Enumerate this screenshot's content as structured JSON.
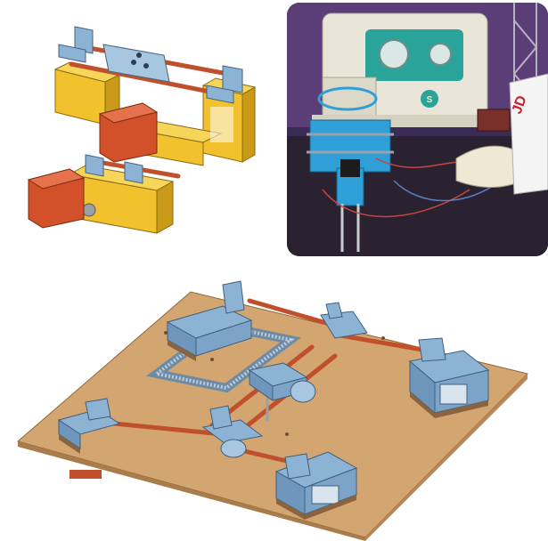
{
  "figure": {
    "panels": [
      {
        "id": "cad-xy-mechanism",
        "kind": "cad-render"
      },
      {
        "id": "embroidery-sewing-machine-photo",
        "kind": "photo"
      },
      {
        "id": "cad-baseplate-assembly",
        "kind": "cad-render"
      }
    ]
  },
  "photo": {
    "machine_badge": "S",
    "sign_lettering": "JD"
  },
  "colors": {
    "part_blue": "#8db3d4",
    "part_blue_dark": "#5d87ad",
    "part_yellow": "#f2c12e",
    "part_yellow_dark": "#c99a17",
    "rod_red": "#c0502b",
    "motor_orange": "#d2502a",
    "board_tan": "#d3a571",
    "board_edge": "#a97c4c",
    "photo_machine_teal": "#2aa39a",
    "photo_bg_purple": "#5b3d78"
  }
}
